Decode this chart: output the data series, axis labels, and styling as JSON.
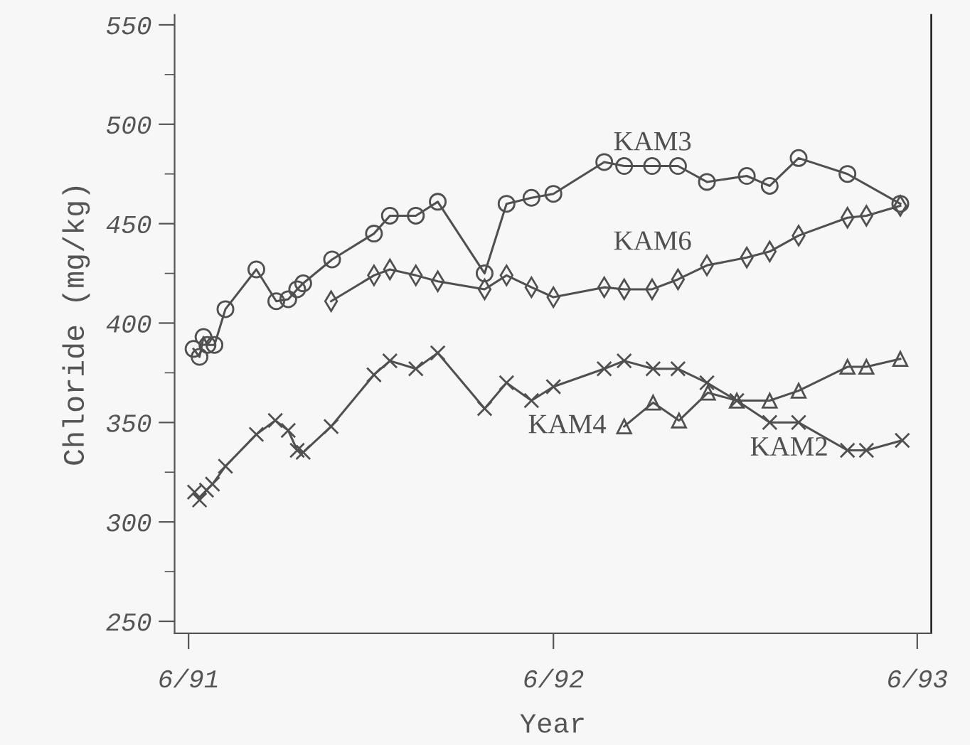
{
  "chart_data": {
    "type": "line",
    "xlabel": "Year",
    "ylabel": "Chloride (mg/kg)",
    "xlim": [
      "1991-06-01",
      "1993-06-29"
    ],
    "xticks": [
      {
        "value": "1991-06-15",
        "label": "6/91"
      },
      {
        "value": "1992-06-15",
        "label": "6/92"
      },
      {
        "value": "1993-06-15",
        "label": "6/93"
      }
    ],
    "ylim": [
      244,
      555
    ],
    "yticks": [
      250,
      300,
      350,
      400,
      450,
      500,
      550
    ],
    "grid": false,
    "legend": false,
    "line_style": "solid",
    "series": [
      {
        "name": "KAM3",
        "color": "#505050",
        "marker": "circle",
        "x": [
          "1991-06-20",
          "1991-06-26",
          "1991-06-30",
          "1991-07-04",
          "1991-07-11",
          "1991-07-22",
          "1991-08-22",
          "1991-09-11",
          "1991-09-23",
          "1991-10-02",
          "1991-10-08",
          "1991-11-06",
          "1991-12-18",
          "1992-01-03",
          "1992-01-29",
          "1992-02-20",
          "1992-04-07",
          "1992-04-29",
          "1992-05-24",
          "1992-06-15",
          "1992-08-05",
          "1992-08-25",
          "1992-09-22",
          "1992-10-18",
          "1992-11-16",
          "1992-12-26",
          "1993-01-18",
          "1993-02-16",
          "1993-04-06",
          "1993-05-29"
        ],
        "values": [
          387,
          383,
          393,
          389,
          389,
          407,
          427,
          411,
          412,
          417,
          420,
          432,
          445,
          454,
          454,
          461,
          425,
          460,
          463,
          465,
          481,
          479,
          479,
          479,
          471,
          474,
          469,
          483,
          475,
          460
        ]
      },
      {
        "name": "KAM6",
        "color": "#505050",
        "marker": "diamond",
        "x": [
          "1991-11-05",
          "1991-12-18",
          "1992-01-03",
          "1992-01-29",
          "1992-02-20",
          "1992-04-07",
          "1992-04-29",
          "1992-05-24",
          "1992-06-15",
          "1992-08-05",
          "1992-08-25",
          "1992-09-22",
          "1992-10-18",
          "1992-11-16",
          "1992-12-26",
          "1993-01-18",
          "1993-02-16",
          "1993-04-06",
          "1993-04-25",
          "1993-05-29"
        ],
        "values": [
          411,
          424,
          427,
          424,
          421,
          417,
          424,
          418,
          413,
          418,
          417,
          417,
          422,
          429,
          433,
          436,
          444,
          453,
          454,
          459
        ]
      },
      {
        "name": "KAM4",
        "color": "#505050",
        "marker": "triangle",
        "x": [
          "1992-08-25",
          "1992-09-23",
          "1992-10-19",
          "1992-11-17",
          "1992-12-16",
          "1993-01-18",
          "1993-02-16",
          "1993-04-06",
          "1993-04-25",
          "1993-05-29"
        ],
        "values": [
          348,
          360,
          351,
          365,
          361,
          361,
          366,
          378,
          378,
          382
        ]
      },
      {
        "name": "KAM2",
        "color": "#505050",
        "marker": "cross",
        "x": [
          "1991-06-21",
          "1991-06-26",
          "1991-07-03",
          "1991-07-09",
          "1991-07-22",
          "1991-08-22",
          "1991-09-10",
          "1991-09-23",
          "1991-10-02",
          "1991-10-08",
          "1991-11-05",
          "1991-12-18",
          "1992-01-03",
          "1992-01-29",
          "1992-02-20",
          "1992-04-07",
          "1992-04-29",
          "1992-05-24",
          "1992-06-15",
          "1992-08-05",
          "1992-08-25",
          "1992-09-23",
          "1992-10-18",
          "1992-11-16",
          "1992-12-16",
          "1993-01-18",
          "1993-02-16",
          "1993-04-06",
          "1993-04-25",
          "1993-05-31"
        ],
        "values": [
          315,
          311,
          316,
          319,
          328,
          344,
          351,
          346,
          336,
          335,
          348,
          374,
          381,
          377,
          385,
          357,
          370,
          361,
          368,
          377,
          381,
          377,
          377,
          370,
          361,
          350,
          350,
          336,
          336,
          341
        ]
      }
    ]
  }
}
